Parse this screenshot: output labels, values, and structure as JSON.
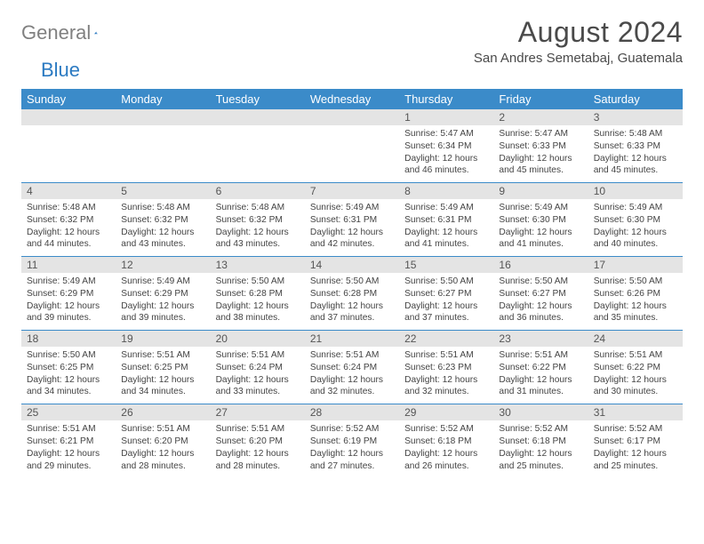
{
  "logo": {
    "gray": "General",
    "blue": "Blue"
  },
  "title": "August 2024",
  "location": "San Andres Semetabaj, Guatemala",
  "colors": {
    "header_bg": "#3b8bc9",
    "header_text": "#ffffff",
    "daynum_bg": "#e4e4e4",
    "rule": "#3b8bc9",
    "logo_gray": "#808080",
    "logo_blue": "#2b7ac2"
  },
  "weekdays": [
    "Sunday",
    "Monday",
    "Tuesday",
    "Wednesday",
    "Thursday",
    "Friday",
    "Saturday"
  ],
  "weeks": [
    [
      {
        "n": "",
        "sr": "",
        "ss": "",
        "dl": ""
      },
      {
        "n": "",
        "sr": "",
        "ss": "",
        "dl": ""
      },
      {
        "n": "",
        "sr": "",
        "ss": "",
        "dl": ""
      },
      {
        "n": "",
        "sr": "",
        "ss": "",
        "dl": ""
      },
      {
        "n": "1",
        "sr": "Sunrise: 5:47 AM",
        "ss": "Sunset: 6:34 PM",
        "dl": "Daylight: 12 hours and 46 minutes."
      },
      {
        "n": "2",
        "sr": "Sunrise: 5:47 AM",
        "ss": "Sunset: 6:33 PM",
        "dl": "Daylight: 12 hours and 45 minutes."
      },
      {
        "n": "3",
        "sr": "Sunrise: 5:48 AM",
        "ss": "Sunset: 6:33 PM",
        "dl": "Daylight: 12 hours and 45 minutes."
      }
    ],
    [
      {
        "n": "4",
        "sr": "Sunrise: 5:48 AM",
        "ss": "Sunset: 6:32 PM",
        "dl": "Daylight: 12 hours and 44 minutes."
      },
      {
        "n": "5",
        "sr": "Sunrise: 5:48 AM",
        "ss": "Sunset: 6:32 PM",
        "dl": "Daylight: 12 hours and 43 minutes."
      },
      {
        "n": "6",
        "sr": "Sunrise: 5:48 AM",
        "ss": "Sunset: 6:32 PM",
        "dl": "Daylight: 12 hours and 43 minutes."
      },
      {
        "n": "7",
        "sr": "Sunrise: 5:49 AM",
        "ss": "Sunset: 6:31 PM",
        "dl": "Daylight: 12 hours and 42 minutes."
      },
      {
        "n": "8",
        "sr": "Sunrise: 5:49 AM",
        "ss": "Sunset: 6:31 PM",
        "dl": "Daylight: 12 hours and 41 minutes."
      },
      {
        "n": "9",
        "sr": "Sunrise: 5:49 AM",
        "ss": "Sunset: 6:30 PM",
        "dl": "Daylight: 12 hours and 41 minutes."
      },
      {
        "n": "10",
        "sr": "Sunrise: 5:49 AM",
        "ss": "Sunset: 6:30 PM",
        "dl": "Daylight: 12 hours and 40 minutes."
      }
    ],
    [
      {
        "n": "11",
        "sr": "Sunrise: 5:49 AM",
        "ss": "Sunset: 6:29 PM",
        "dl": "Daylight: 12 hours and 39 minutes."
      },
      {
        "n": "12",
        "sr": "Sunrise: 5:49 AM",
        "ss": "Sunset: 6:29 PM",
        "dl": "Daylight: 12 hours and 39 minutes."
      },
      {
        "n": "13",
        "sr": "Sunrise: 5:50 AM",
        "ss": "Sunset: 6:28 PM",
        "dl": "Daylight: 12 hours and 38 minutes."
      },
      {
        "n": "14",
        "sr": "Sunrise: 5:50 AM",
        "ss": "Sunset: 6:28 PM",
        "dl": "Daylight: 12 hours and 37 minutes."
      },
      {
        "n": "15",
        "sr": "Sunrise: 5:50 AM",
        "ss": "Sunset: 6:27 PM",
        "dl": "Daylight: 12 hours and 37 minutes."
      },
      {
        "n": "16",
        "sr": "Sunrise: 5:50 AM",
        "ss": "Sunset: 6:27 PM",
        "dl": "Daylight: 12 hours and 36 minutes."
      },
      {
        "n": "17",
        "sr": "Sunrise: 5:50 AM",
        "ss": "Sunset: 6:26 PM",
        "dl": "Daylight: 12 hours and 35 minutes."
      }
    ],
    [
      {
        "n": "18",
        "sr": "Sunrise: 5:50 AM",
        "ss": "Sunset: 6:25 PM",
        "dl": "Daylight: 12 hours and 34 minutes."
      },
      {
        "n": "19",
        "sr": "Sunrise: 5:51 AM",
        "ss": "Sunset: 6:25 PM",
        "dl": "Daylight: 12 hours and 34 minutes."
      },
      {
        "n": "20",
        "sr": "Sunrise: 5:51 AM",
        "ss": "Sunset: 6:24 PM",
        "dl": "Daylight: 12 hours and 33 minutes."
      },
      {
        "n": "21",
        "sr": "Sunrise: 5:51 AM",
        "ss": "Sunset: 6:24 PM",
        "dl": "Daylight: 12 hours and 32 minutes."
      },
      {
        "n": "22",
        "sr": "Sunrise: 5:51 AM",
        "ss": "Sunset: 6:23 PM",
        "dl": "Daylight: 12 hours and 32 minutes."
      },
      {
        "n": "23",
        "sr": "Sunrise: 5:51 AM",
        "ss": "Sunset: 6:22 PM",
        "dl": "Daylight: 12 hours and 31 minutes."
      },
      {
        "n": "24",
        "sr": "Sunrise: 5:51 AM",
        "ss": "Sunset: 6:22 PM",
        "dl": "Daylight: 12 hours and 30 minutes."
      }
    ],
    [
      {
        "n": "25",
        "sr": "Sunrise: 5:51 AM",
        "ss": "Sunset: 6:21 PM",
        "dl": "Daylight: 12 hours and 29 minutes."
      },
      {
        "n": "26",
        "sr": "Sunrise: 5:51 AM",
        "ss": "Sunset: 6:20 PM",
        "dl": "Daylight: 12 hours and 28 minutes."
      },
      {
        "n": "27",
        "sr": "Sunrise: 5:51 AM",
        "ss": "Sunset: 6:20 PM",
        "dl": "Daylight: 12 hours and 28 minutes."
      },
      {
        "n": "28",
        "sr": "Sunrise: 5:52 AM",
        "ss": "Sunset: 6:19 PM",
        "dl": "Daylight: 12 hours and 27 minutes."
      },
      {
        "n": "29",
        "sr": "Sunrise: 5:52 AM",
        "ss": "Sunset: 6:18 PM",
        "dl": "Daylight: 12 hours and 26 minutes."
      },
      {
        "n": "30",
        "sr": "Sunrise: 5:52 AM",
        "ss": "Sunset: 6:18 PM",
        "dl": "Daylight: 12 hours and 25 minutes."
      },
      {
        "n": "31",
        "sr": "Sunrise: 5:52 AM",
        "ss": "Sunset: 6:17 PM",
        "dl": "Daylight: 12 hours and 25 minutes."
      }
    ]
  ]
}
